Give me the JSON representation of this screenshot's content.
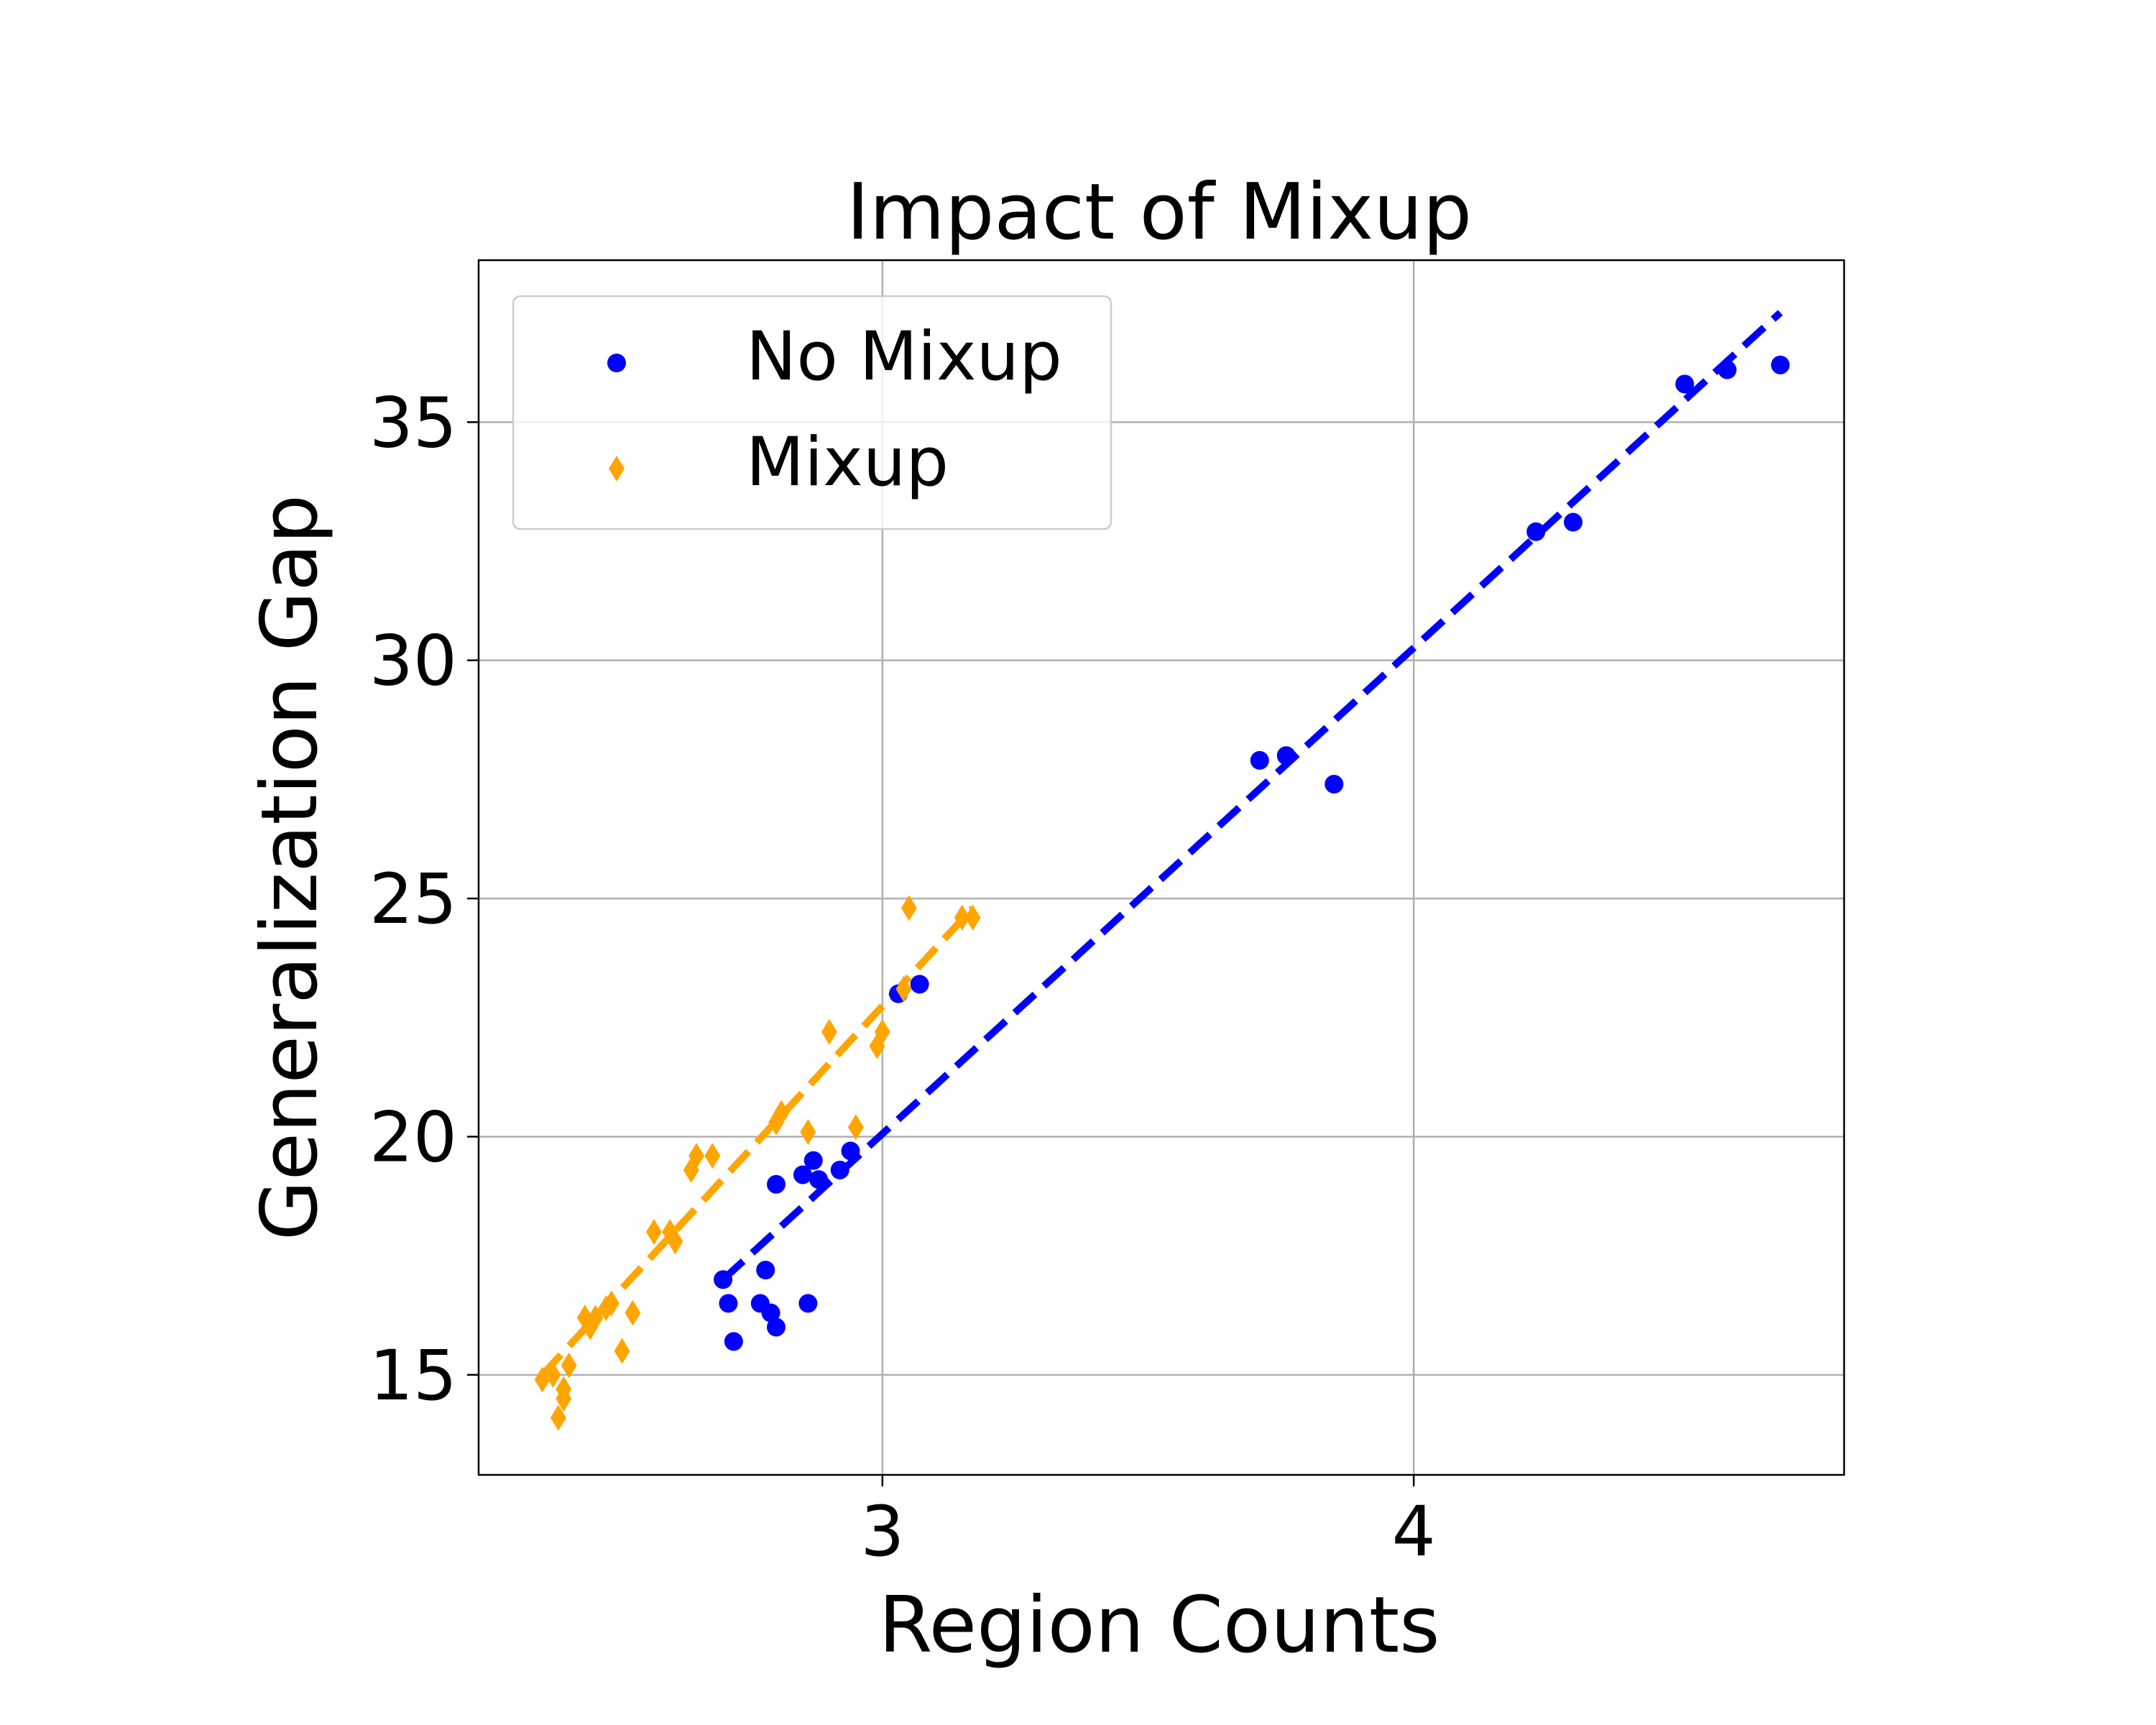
{
  "chart_data": {
    "type": "scatter",
    "title": "Impact of Mixup",
    "xlabel": "Region Counts",
    "ylabel": "Generalization Gap",
    "xlim": [
      2.24,
      4.81
    ],
    "ylim": [
      12.9,
      38.4
    ],
    "xticks": [
      3,
      4
    ],
    "yticks": [
      15,
      20,
      25,
      30,
      35
    ],
    "xtick_labels": [
      "3",
      "4"
    ],
    "ytick_labels": [
      "15",
      "20",
      "25",
      "30",
      "35"
    ],
    "grid": true,
    "legend_position": "upper-left",
    "series": [
      {
        "name": "No Mixup",
        "color": "#0000ff",
        "marker": "circle",
        "points": [
          [
            2.7,
            17.0
          ],
          [
            2.71,
            16.5
          ],
          [
            2.72,
            15.7
          ],
          [
            2.77,
            16.5
          ],
          [
            2.78,
            17.2
          ],
          [
            2.79,
            16.3
          ],
          [
            2.8,
            16.0
          ],
          [
            2.8,
            19.0
          ],
          [
            2.85,
            19.2
          ],
          [
            2.86,
            16.5
          ],
          [
            2.87,
            19.5
          ],
          [
            2.88,
            19.1
          ],
          [
            2.92,
            19.3
          ],
          [
            2.94,
            19.7
          ],
          [
            3.03,
            23.0
          ],
          [
            3.07,
            23.2
          ],
          [
            3.71,
            27.9
          ],
          [
            3.76,
            28.0
          ],
          [
            3.85,
            27.4
          ],
          [
            4.23,
            32.7
          ],
          [
            4.3,
            32.9
          ],
          [
            4.51,
            35.8
          ],
          [
            4.59,
            36.1
          ],
          [
            4.69,
            36.2
          ]
        ],
        "trendline": {
          "x": [
            2.7,
            4.69
          ],
          "y": [
            17.0,
            37.3
          ],
          "style": "dashed"
        }
      },
      {
        "name": "Mixup",
        "color": "#ffa500",
        "marker": "diamond",
        "points": [
          [
            2.36,
            14.9
          ],
          [
            2.38,
            15.0
          ],
          [
            2.39,
            14.1
          ],
          [
            2.4,
            14.5
          ],
          [
            2.4,
            14.7
          ],
          [
            2.41,
            15.2
          ],
          [
            2.44,
            16.2
          ],
          [
            2.45,
            16.0
          ],
          [
            2.46,
            16.2
          ],
          [
            2.48,
            16.4
          ],
          [
            2.49,
            16.5
          ],
          [
            2.51,
            15.5
          ],
          [
            2.53,
            16.3
          ],
          [
            2.57,
            18.0
          ],
          [
            2.6,
            18.0
          ],
          [
            2.61,
            17.8
          ],
          [
            2.64,
            19.3
          ],
          [
            2.65,
            19.6
          ],
          [
            2.68,
            19.6
          ],
          [
            2.8,
            20.3
          ],
          [
            2.81,
            20.5
          ],
          [
            2.86,
            20.1
          ],
          [
            2.9,
            22.2
          ],
          [
            2.95,
            20.2
          ],
          [
            2.99,
            21.9
          ],
          [
            3.0,
            22.2
          ],
          [
            3.04,
            23.1
          ],
          [
            3.05,
            24.8
          ],
          [
            3.15,
            24.6
          ],
          [
            3.17,
            24.6
          ]
        ],
        "trendline": {
          "x": [
            2.36,
            3.17
          ],
          "y": [
            15.0,
            24.8
          ],
          "style": "dashed"
        }
      }
    ]
  }
}
